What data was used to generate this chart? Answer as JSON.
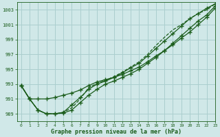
{
  "xlabel": "Graphe pression niveau de la mer (hPa)",
  "background_color": "#d0e8e8",
  "grid_color": "#aacece",
  "line_color": "#1a5c1a",
  "xlim": [
    -0.5,
    23
  ],
  "ylim": [
    988.0,
    1004.0
  ],
  "yticks": [
    989,
    991,
    993,
    995,
    997,
    999,
    1001,
    1003
  ],
  "xticks": [
    0,
    1,
    2,
    3,
    4,
    5,
    6,
    7,
    8,
    9,
    10,
    11,
    12,
    13,
    14,
    15,
    16,
    17,
    18,
    19,
    20,
    21,
    22,
    23
  ],
  "series": [
    {
      "y": [
        992.8,
        991.0,
        991.0,
        991.0,
        991.2,
        991.5,
        991.8,
        992.2,
        992.8,
        993.3,
        993.6,
        993.9,
        994.3,
        994.8,
        995.3,
        996.0,
        996.8,
        997.5,
        998.3,
        999.2,
        1000.0,
        1001.0,
        1002.0,
        1003.2
      ],
      "style": "solid",
      "marker": true
    },
    {
      "y": [
        992.8,
        991.0,
        989.5,
        989.0,
        989.0,
        989.1,
        989.5,
        990.5,
        991.5,
        992.3,
        993.0,
        993.4,
        993.9,
        994.4,
        995.0,
        995.8,
        996.6,
        997.5,
        998.5,
        999.5,
        1000.5,
        1001.5,
        1002.3,
        1003.5
      ],
      "style": "solid",
      "marker": true
    },
    {
      "y": [
        992.8,
        991.0,
        989.5,
        989.0,
        989.0,
        989.2,
        990.2,
        991.2,
        992.3,
        993.0,
        993.4,
        993.9,
        994.5,
        995.2,
        995.8,
        996.8,
        997.8,
        998.8,
        999.8,
        1000.8,
        1001.8,
        1002.5,
        1003.2,
        1003.8
      ],
      "style": "solid",
      "marker": true
    },
    {
      "y": [
        992.8,
        991.0,
        989.5,
        989.0,
        989.0,
        989.2,
        989.8,
        991.0,
        992.5,
        993.1,
        993.5,
        994.0,
        994.6,
        995.3,
        996.0,
        997.0,
        998.2,
        999.3,
        1000.3,
        1001.0,
        1001.8,
        1002.5,
        1003.0,
        1003.8
      ],
      "style": "dashed",
      "marker": false
    }
  ]
}
